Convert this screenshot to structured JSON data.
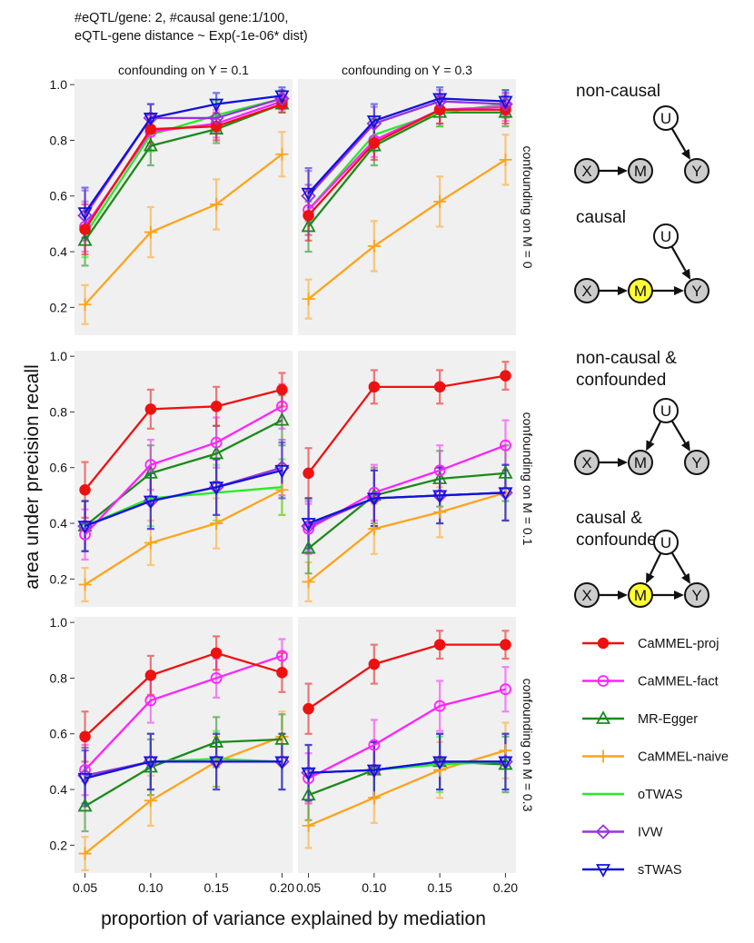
{
  "header": {
    "line1": "#eQTL/gene: 2, #causal gene:1/100,",
    "line2": "eQTL-gene distance ~ Exp(-1e-06* dist)"
  },
  "axes": {
    "xlabel": "proportion of variance explained by mediation",
    "ylabel": "area under precision recall",
    "x_ticks": [
      "0.05",
      "0.10",
      "0.15",
      "0.20"
    ],
    "y_ticks": [
      "0.2",
      "0.4",
      "0.6",
      "0.8",
      "1.0"
    ]
  },
  "facets": {
    "columns": [
      "confounding on Y = 0.1",
      "confounding on Y = 0.3"
    ],
    "rows": [
      "confounding on M = 0",
      "confounding on M = 0.1",
      "confounding on M = 0.3"
    ]
  },
  "diagrams": [
    {
      "title_lines": [
        "non-causal"
      ],
      "x": "X",
      "m": "M",
      "u": "U",
      "y": "Y"
    },
    {
      "title_lines": [
        "causal"
      ],
      "x": "X",
      "m": "M",
      "u": "U",
      "y": "Y"
    },
    {
      "title_lines": [
        "non-causal &",
        "confounded"
      ],
      "x": "X",
      "m": "M",
      "u": "U",
      "y": "Y"
    },
    {
      "title_lines": [
        "causal &",
        "confounded"
      ],
      "x": "X",
      "m": "M",
      "u": "U",
      "y": "Y"
    }
  ],
  "colors": {
    "CaMMEL-proj": "#ee1111",
    "CaMMEL-fact": "#ff22ff",
    "MR-Egger": "#1a8a1a",
    "CaMMEL-naive": "#ffa31a",
    "oTWAS": "#22ee22",
    "IVW": "#9933dd",
    "sTWAS": "#1111dd",
    "panel_bg": "#f0f0f0",
    "node_fill": "#cccccc",
    "mediator_fill": "#ffff33"
  },
  "legend": [
    {
      "name": "CaMMEL-proj",
      "marker": "filled-circle"
    },
    {
      "name": "CaMMEL-fact",
      "marker": "open-circle"
    },
    {
      "name": "MR-Egger",
      "marker": "open-triangle"
    },
    {
      "name": "CaMMEL-naive",
      "marker": "plus"
    },
    {
      "name": "oTWAS",
      "marker": "none"
    },
    {
      "name": "IVW",
      "marker": "open-diamond"
    },
    {
      "name": "sTWAS",
      "marker": "open-down-triangle"
    }
  ],
  "chart_data": {
    "type": "line",
    "x": [
      0.05,
      0.1,
      0.15,
      0.2
    ],
    "xlim": [
      0.042,
      0.208
    ],
    "ylim": [
      0.1,
      1.02
    ],
    "grid": false,
    "legend_position": "right",
    "panels": [
      {
        "col": 0,
        "row": 0,
        "series": [
          {
            "name": "CaMMEL-proj",
            "values": [
              0.48,
              0.84,
              0.85,
              0.93
            ],
            "err": [
              0.09,
              0.05,
              0.05,
              0.03
            ]
          },
          {
            "name": "CaMMEL-fact",
            "values": [
              0.49,
              0.83,
              0.86,
              0.94
            ],
            "err": [
              0.09,
              0.05,
              0.05,
              0.03
            ]
          },
          {
            "name": "MR-Egger",
            "values": [
              0.44,
              0.78,
              0.84,
              0.93
            ],
            "err": [
              0.09,
              0.07,
              0.05,
              0.03
            ]
          },
          {
            "name": "CaMMEL-naive",
            "values": [
              0.21,
              0.47,
              0.57,
              0.75
            ],
            "err": [
              0.07,
              0.09,
              0.09,
              0.08
            ]
          },
          {
            "name": "oTWAS",
            "values": [
              0.46,
              0.82,
              0.89,
              0.95
            ],
            "err": [
              0.08,
              0.06,
              0.05,
              0.03
            ]
          },
          {
            "name": "IVW",
            "values": [
              0.53,
              0.88,
              0.88,
              0.95
            ],
            "err": [
              0.09,
              0.05,
              0.05,
              0.03
            ]
          },
          {
            "name": "sTWAS",
            "values": [
              0.54,
              0.88,
              0.93,
              0.96
            ],
            "err": [
              0.09,
              0.05,
              0.04,
              0.03
            ]
          }
        ]
      },
      {
        "col": 1,
        "row": 0,
        "series": [
          {
            "name": "CaMMEL-proj",
            "values": [
              0.53,
              0.79,
              0.91,
              0.91
            ],
            "err": [
              0.09,
              0.06,
              0.05,
              0.05
            ]
          },
          {
            "name": "CaMMEL-fact",
            "values": [
              0.55,
              0.8,
              0.91,
              0.92
            ],
            "err": [
              0.09,
              0.06,
              0.05,
              0.05
            ]
          },
          {
            "name": "MR-Egger",
            "values": [
              0.49,
              0.78,
              0.9,
              0.9
            ],
            "err": [
              0.09,
              0.07,
              0.05,
              0.05
            ]
          },
          {
            "name": "CaMMEL-naive",
            "values": [
              0.23,
              0.42,
              0.58,
              0.73
            ],
            "err": [
              0.07,
              0.09,
              0.09,
              0.09
            ]
          },
          {
            "name": "oTWAS",
            "values": [
              0.55,
              0.82,
              0.9,
              0.93
            ],
            "err": [
              0.09,
              0.06,
              0.05,
              0.05
            ]
          },
          {
            "name": "IVW",
            "values": [
              0.6,
              0.86,
              0.94,
              0.93
            ],
            "err": [
              0.09,
              0.06,
              0.04,
              0.04
            ]
          },
          {
            "name": "sTWAS",
            "values": [
              0.61,
              0.87,
              0.95,
              0.94
            ],
            "err": [
              0.09,
              0.06,
              0.04,
              0.04
            ]
          }
        ]
      },
      {
        "col": 0,
        "row": 1,
        "series": [
          {
            "name": "CaMMEL-proj",
            "values": [
              0.52,
              0.81,
              0.82,
              0.88
            ],
            "err": [
              0.1,
              0.07,
              0.07,
              0.06
            ]
          },
          {
            "name": "CaMMEL-fact",
            "values": [
              0.36,
              0.61,
              0.69,
              0.82
            ],
            "err": [
              0.09,
              0.09,
              0.09,
              0.08
            ]
          },
          {
            "name": "MR-Egger",
            "values": [
              0.39,
              0.58,
              0.65,
              0.77
            ],
            "err": [
              0.09,
              0.1,
              0.1,
              0.09
            ]
          },
          {
            "name": "CaMMEL-naive",
            "values": [
              0.18,
              0.33,
              0.4,
              0.52
            ],
            "err": [
              0.06,
              0.08,
              0.09,
              0.09
            ]
          },
          {
            "name": "oTWAS",
            "values": [
              0.39,
              0.49,
              0.51,
              0.53
            ],
            "err": [
              0.09,
              0.1,
              0.1,
              0.1
            ]
          },
          {
            "name": "IVW",
            "values": [
              0.39,
              0.48,
              0.53,
              0.6
            ],
            "err": [
              0.09,
              0.1,
              0.1,
              0.1
            ]
          },
          {
            "name": "sTWAS",
            "values": [
              0.39,
              0.48,
              0.53,
              0.59
            ],
            "err": [
              0.09,
              0.1,
              0.1,
              0.1
            ]
          }
        ]
      },
      {
        "col": 1,
        "row": 1,
        "series": [
          {
            "name": "CaMMEL-proj",
            "values": [
              0.58,
              0.89,
              0.89,
              0.93
            ],
            "err": [
              0.09,
              0.06,
              0.06,
              0.05
            ]
          },
          {
            "name": "CaMMEL-fact",
            "values": [
              0.38,
              0.51,
              0.59,
              0.68
            ],
            "err": [
              0.09,
              0.1,
              0.09,
              0.09
            ]
          },
          {
            "name": "MR-Egger",
            "values": [
              0.31,
              0.5,
              0.56,
              0.58
            ],
            "err": [
              0.09,
              0.1,
              0.1,
              0.1
            ]
          },
          {
            "name": "CaMMEL-naive",
            "values": [
              0.19,
              0.38,
              0.44,
              0.51
            ],
            "err": [
              0.07,
              0.09,
              0.09,
              0.1
            ]
          },
          {
            "name": "oTWAS",
            "values": [
              0.4,
              0.49,
              0.5,
              0.51
            ],
            "err": [
              0.09,
              0.1,
              0.1,
              0.1
            ]
          },
          {
            "name": "IVW",
            "values": [
              0.39,
              0.49,
              0.5,
              0.51
            ],
            "err": [
              0.09,
              0.1,
              0.1,
              0.1
            ]
          },
          {
            "name": "sTWAS",
            "values": [
              0.4,
              0.49,
              0.5,
              0.51
            ],
            "err": [
              0.09,
              0.1,
              0.1,
              0.1
            ]
          }
        ]
      },
      {
        "col": 0,
        "row": 2,
        "series": [
          {
            "name": "CaMMEL-proj",
            "values": [
              0.59,
              0.81,
              0.89,
              0.82
            ],
            "err": [
              0.09,
              0.07,
              0.06,
              0.07
            ]
          },
          {
            "name": "CaMMEL-fact",
            "values": [
              0.47,
              0.72,
              0.8,
              0.88
            ],
            "err": [
              0.09,
              0.08,
              0.07,
              0.06
            ]
          },
          {
            "name": "MR-Egger",
            "values": [
              0.34,
              0.48,
              0.57,
              0.58
            ],
            "err": [
              0.09,
              0.1,
              0.09,
              0.09
            ]
          },
          {
            "name": "CaMMEL-naive",
            "values": [
              0.17,
              0.36,
              0.5,
              0.59
            ],
            "err": [
              0.06,
              0.09,
              0.09,
              0.09
            ]
          },
          {
            "name": "oTWAS",
            "values": [
              0.45,
              0.5,
              0.51,
              0.5
            ],
            "err": [
              0.1,
              0.1,
              0.1,
              0.1
            ]
          },
          {
            "name": "IVW",
            "values": [
              0.45,
              0.5,
              0.5,
              0.5
            ],
            "err": [
              0.1,
              0.1,
              0.1,
              0.1
            ]
          },
          {
            "name": "sTWAS",
            "values": [
              0.44,
              0.5,
              0.5,
              0.5
            ],
            "err": [
              0.1,
              0.1,
              0.1,
              0.1
            ]
          }
        ]
      },
      {
        "col": 1,
        "row": 2,
        "series": [
          {
            "name": "CaMMEL-proj",
            "values": [
              0.69,
              0.85,
              0.92,
              0.92
            ],
            "err": [
              0.09,
              0.07,
              0.05,
              0.05
            ]
          },
          {
            "name": "CaMMEL-fact",
            "values": [
              0.44,
              0.56,
              0.7,
              0.76
            ],
            "err": [
              0.09,
              0.09,
              0.09,
              0.08
            ]
          },
          {
            "name": "MR-Egger",
            "values": [
              0.38,
              0.47,
              0.5,
              0.49
            ],
            "err": [
              0.09,
              0.1,
              0.1,
              0.1
            ]
          },
          {
            "name": "CaMMEL-naive",
            "values": [
              0.27,
              0.37,
              0.47,
              0.54
            ],
            "err": [
              0.08,
              0.09,
              0.1,
              0.1
            ]
          },
          {
            "name": "oTWAS",
            "values": [
              0.46,
              0.47,
              0.49,
              0.5
            ],
            "err": [
              0.1,
              0.1,
              0.1,
              0.1
            ]
          },
          {
            "name": "IVW",
            "values": [
              0.46,
              0.47,
              0.5,
              0.5
            ],
            "err": [
              0.1,
              0.1,
              0.1,
              0.1
            ]
          },
          {
            "name": "sTWAS",
            "values": [
              0.46,
              0.47,
              0.5,
              0.5
            ],
            "err": [
              0.1,
              0.1,
              0.1,
              0.1
            ]
          }
        ]
      }
    ]
  }
}
